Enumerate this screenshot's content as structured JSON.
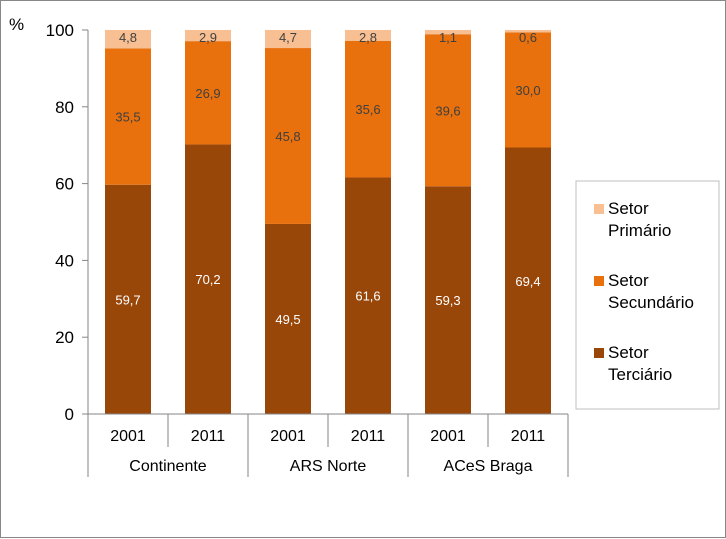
{
  "chart_data": {
    "type": "bar",
    "stacked": true,
    "ylabel": "%",
    "ylim": [
      0,
      100
    ],
    "yticks": [
      "0",
      "20",
      "40",
      "60",
      "80",
      "100"
    ],
    "grid": false,
    "legend_position": "right",
    "groups": [
      {
        "label": "Continente",
        "categories": [
          "2001",
          "2011"
        ]
      },
      {
        "label": "ARS Norte",
        "categories": [
          "2001",
          "2011"
        ]
      },
      {
        "label": "ACeS Braga",
        "categories": [
          "2001",
          "2011"
        ]
      }
    ],
    "series": [
      {
        "name": "Setor Terciário",
        "legend_lines": [
          "Setor",
          "Terciário"
        ],
        "color": "#994709",
        "label_color": "#ffffff",
        "values": [
          59.7,
          70.2,
          49.5,
          61.6,
          59.3,
          69.4
        ],
        "labels": [
          "59,7",
          "70,2",
          "49,5",
          "61,6",
          "59,3",
          "69,4"
        ]
      },
      {
        "name": "Setor Secundário",
        "legend_lines": [
          "Setor",
          "Secundário"
        ],
        "color": "#E8700D",
        "label_color": "#404040",
        "values": [
          35.5,
          26.9,
          45.8,
          35.6,
          39.6,
          30.0
        ],
        "labels": [
          "35,5",
          "26,9",
          "45,8",
          "35,6",
          "39,6",
          "30,0"
        ]
      },
      {
        "name": "Setor Primário",
        "legend_lines": [
          "Setor",
          "Primário"
        ],
        "color": "#F8C092",
        "label_color": "#404040",
        "values": [
          4.8,
          2.9,
          4.7,
          2.8,
          1.1,
          0.6
        ],
        "labels": [
          "4,8",
          "2,9",
          "4,7",
          "2,8",
          "1,1",
          "0,6"
        ]
      }
    ]
  }
}
